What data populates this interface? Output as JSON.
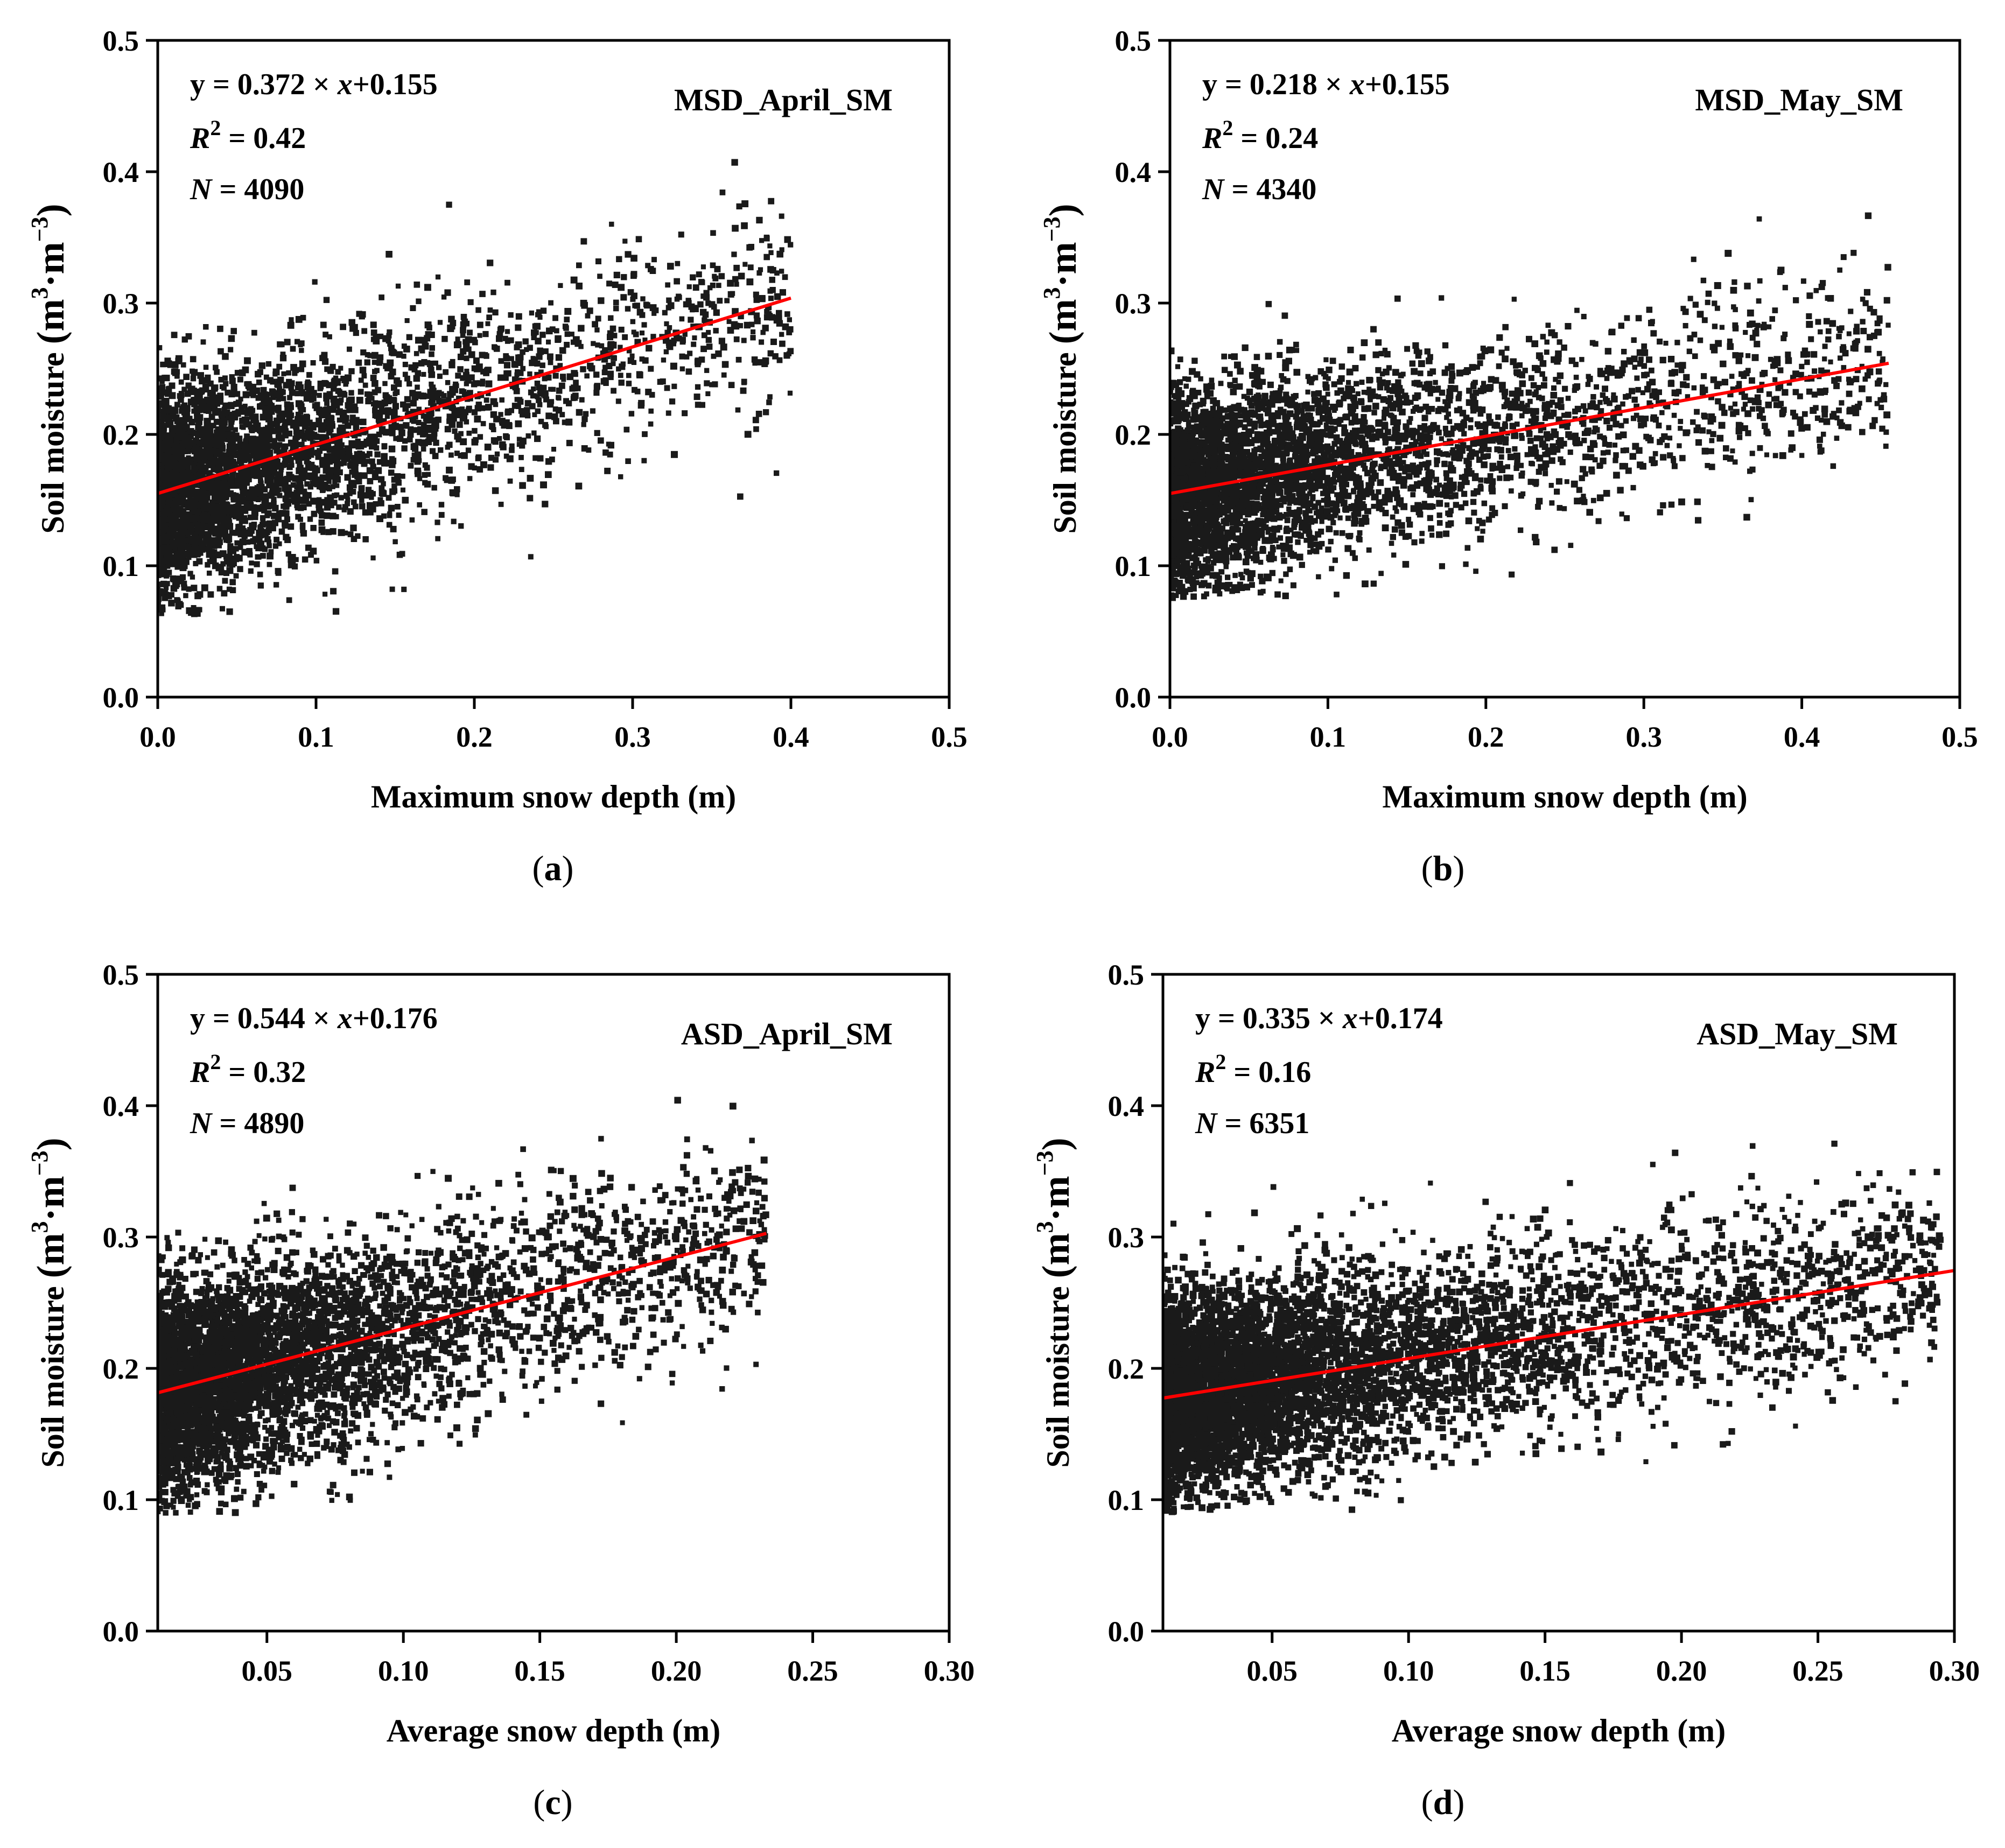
{
  "figure": {
    "shared": {
      "y_label_main": "Soil moisture",
      "y_label_unit_open": "(m",
      "y_label_unit_sup1": "3",
      "y_label_unit_mid": "·m",
      "y_label_unit_sup2": "−3",
      "y_label_unit_close": ")",
      "r2_symbol": "R",
      "r2_sup": "2",
      "n_symbol": "N",
      "eq_prefix": "y = ",
      "eq_times": " × ",
      "eq_var": "x",
      "colors": {
        "points": "#1a1a1a",
        "fit_line": "#ff0000",
        "axis": "#000000"
      }
    }
  },
  "chart_data": [
    {
      "id": "a",
      "type": "scatter",
      "panel_label": "(a)",
      "panel_letter": "a",
      "title": "MSD_April_SM",
      "xlabel": "Maximum snow depth (m)",
      "ylabel": "Soil moisture (m3·m-3)",
      "xlim": [
        0,
        0.5
      ],
      "ylim": [
        0,
        0.5
      ],
      "xticks": [
        "0.0",
        "0.1",
        "0.2",
        "0.3",
        "0.4",
        "0.5"
      ],
      "yticks": [
        "0.0",
        "0.1",
        "0.2",
        "0.3",
        "0.4",
        "0.5"
      ],
      "xtick_values": [
        0,
        0.1,
        0.2,
        0.3,
        0.4,
        0.5
      ],
      "ytick_values": [
        0,
        0.1,
        0.2,
        0.3,
        0.4,
        0.5
      ],
      "equation": {
        "slope": "0.372",
        "intercept": "+0.155",
        "slope_value": 0.372,
        "intercept_value": 0.155
      },
      "r2": "0.42",
      "n": "4090",
      "n_points": 4090,
      "fit_x_range": [
        0,
        0.4
      ],
      "x_distribution": {
        "mode": 0.0,
        "scale": 0.1,
        "max": 0.4
      },
      "y_noise_sd": 0.04,
      "y_min_obs": 0.063
    },
    {
      "id": "b",
      "type": "scatter",
      "panel_label": "(b)",
      "panel_letter": "b",
      "title": "MSD_May_SM",
      "xlabel": "Maximum snow depth (m)",
      "ylabel": "Soil moisture (m3·m-3)",
      "xlim": [
        0,
        0.5
      ],
      "ylim": [
        0,
        0.5
      ],
      "xticks": [
        "0.0",
        "0.1",
        "0.2",
        "0.3",
        "0.4",
        "0.5"
      ],
      "yticks": [
        "0.0",
        "0.1",
        "0.2",
        "0.3",
        "0.4",
        "0.5"
      ],
      "xtick_values": [
        0,
        0.1,
        0.2,
        0.3,
        0.4,
        0.5
      ],
      "ytick_values": [
        0,
        0.1,
        0.2,
        0.3,
        0.4,
        0.5
      ],
      "equation": {
        "slope": "0.218",
        "intercept": "+0.155",
        "slope_value": 0.218,
        "intercept_value": 0.155
      },
      "r2": "0.24",
      "n": "4340",
      "n_points": 4340,
      "fit_x_range": [
        0,
        0.455
      ],
      "x_distribution": {
        "mode": 0.0,
        "scale": 0.11,
        "max": 0.455
      },
      "y_noise_sd": 0.037,
      "y_min_obs": 0.075
    },
    {
      "id": "c",
      "type": "scatter",
      "panel_label": "(c)",
      "panel_letter": "c",
      "title": "ASD_April_SM",
      "xlabel": "Average snow depth (m)",
      "ylabel": "Soil moisture (m3·m-3)",
      "xlim": [
        0.01,
        0.3
      ],
      "ylim": [
        0,
        0.5
      ],
      "xticks": [
        "0.05",
        "0.10",
        "0.15",
        "0.20",
        "0.25",
        "0.30"
      ],
      "yticks": [
        "0.0",
        "0.1",
        "0.2",
        "0.3",
        "0.4",
        "0.5"
      ],
      "xtick_values": [
        0.05,
        0.1,
        0.15,
        0.2,
        0.25,
        0.3
      ],
      "ytick_values": [
        0,
        0.1,
        0.2,
        0.3,
        0.4,
        0.5
      ],
      "equation": {
        "slope": "0.544",
        "intercept": "+0.176",
        "slope_value": 0.544,
        "intercept_value": 0.176
      },
      "r2": "0.32",
      "n": "4890",
      "n_points": 4890,
      "fit_x_range": [
        0.01,
        0.233
      ],
      "x_distribution": {
        "mode": 0.01,
        "scale": 0.055,
        "max": 0.233
      },
      "y_noise_sd": 0.04,
      "y_min_obs": 0.09
    },
    {
      "id": "d",
      "type": "scatter",
      "panel_label": "(d)",
      "panel_letter": "d",
      "title": "ASD_May_SM",
      "xlabel": "Average snow depth (m)",
      "ylabel": "Soil moisture (m3·m-3)",
      "xlim": [
        0.01,
        0.3
      ],
      "ylim": [
        0,
        0.5
      ],
      "xticks": [
        "0.05",
        "0.10",
        "0.15",
        "0.20",
        "0.25",
        "0.30"
      ],
      "yticks": [
        "0.0",
        "0.1",
        "0.2",
        "0.3",
        "0.4",
        "0.5"
      ],
      "xtick_values": [
        0.05,
        0.1,
        0.15,
        0.2,
        0.25,
        0.3
      ],
      "ytick_values": [
        0,
        0.1,
        0.2,
        0.3,
        0.4,
        0.5
      ],
      "equation": {
        "slope": "0.335",
        "intercept": "+0.174",
        "slope_value": 0.335,
        "intercept_value": 0.174
      },
      "r2": "0.16",
      "n": "6351",
      "n_points": 6351,
      "fit_x_range": [
        0.01,
        0.3
      ],
      "x_distribution": {
        "mode": 0.01,
        "scale": 0.06,
        "max": 0.295
      },
      "y_noise_sd": 0.038,
      "y_min_obs": 0.09
    }
  ]
}
